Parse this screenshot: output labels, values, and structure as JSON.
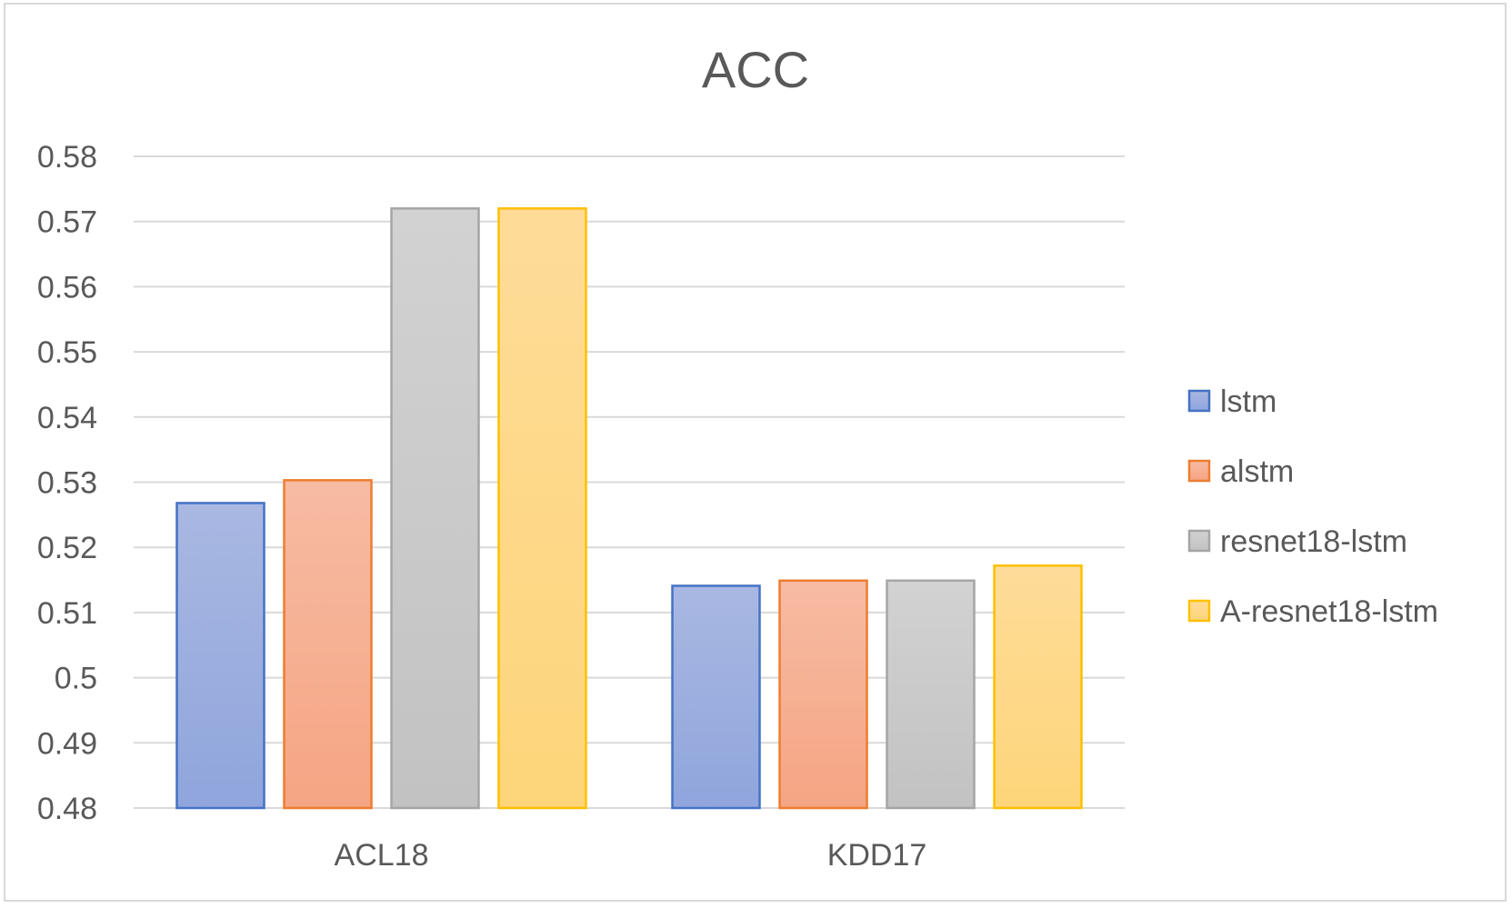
{
  "chart_data": {
    "type": "bar",
    "title": "ACC",
    "xlabel": "",
    "ylabel": "",
    "categories": [
      "ACL18",
      "KDD17"
    ],
    "series": [
      {
        "name": "lstm",
        "values": [
          0.5268,
          0.5141
        ],
        "color": "#8FA5DC",
        "gradient_top": "#A9B8E2",
        "border": "#4472C4"
      },
      {
        "name": "alstm",
        "values": [
          0.5303,
          0.5149
        ],
        "color": "#F5A583",
        "gradient_top": "#F7BBA3",
        "border": "#ED7D31"
      },
      {
        "name": "resnet18-lstm",
        "values": [
          0.572,
          0.5149
        ],
        "color": "#C2C2C2",
        "gradient_top": "#D2D2D2",
        "border": "#A5A5A5"
      },
      {
        "name": "A-resnet18-lstm",
        "values": [
          0.572,
          0.5172
        ],
        "color": "#FDD57A",
        "gradient_top": "#FEDC98",
        "border": "#FFC000"
      }
    ],
    "ylim": [
      0.48,
      0.58
    ],
    "yticks": [
      0.48,
      0.49,
      0.5,
      0.51,
      0.52,
      0.53,
      0.54,
      0.55,
      0.56,
      0.57,
      0.58
    ],
    "ytick_labels": [
      "0.48",
      "0.49",
      "0.5",
      "0.51",
      "0.52",
      "0.53",
      "0.54",
      "0.55",
      "0.56",
      "0.57",
      "0.58"
    ],
    "grid": true,
    "legend_position": "right",
    "colors": {
      "grid": "#d9d9d9",
      "text": "#595959"
    }
  }
}
